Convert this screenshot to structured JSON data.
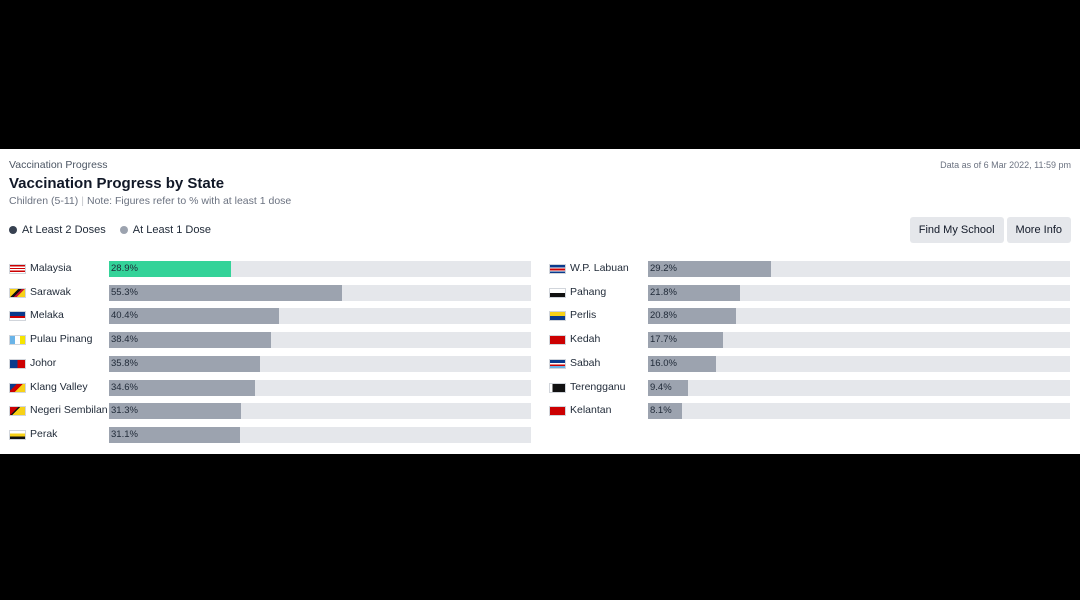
{
  "header": {
    "breadcrumb": "Vaccination Progress",
    "date": "Data as of 6 Mar 2022, 11:59 pm",
    "title": "Vaccination Progress by State",
    "subtitle_group": "Children (5-11)",
    "subtitle_separator": "|",
    "subtitle_note": "Note: Figures refer to % with at least 1 dose"
  },
  "legend": [
    {
      "label": "At Least 2 Doses",
      "color": "#374151"
    },
    {
      "label": "At Least 1 Dose",
      "color": "#9ca3af"
    }
  ],
  "buttons": {
    "find_school": "Find My School",
    "more_info": "More Info"
  },
  "colors": {
    "bar": "#9ca3af",
    "highlight": "#34d399",
    "track": "#e5e7eb"
  },
  "chart_data": {
    "type": "bar",
    "orientation": "horizontal",
    "unit": "%",
    "xlim": [
      0,
      100
    ],
    "grid": false,
    "legend_placement": "top-left",
    "columns": [
      {
        "rows": [
          {
            "state": "Malaysia",
            "value": 28.9,
            "label": "28.9%",
            "highlight": true,
            "flag": "malaysia-flag"
          },
          {
            "state": "Sarawak",
            "value": 55.3,
            "label": "55.3%",
            "flag": "sarawak-flag"
          },
          {
            "state": "Melaka",
            "value": 40.4,
            "label": "40.4%",
            "flag": "melaka-flag"
          },
          {
            "state": "Pulau Pinang",
            "value": 38.4,
            "label": "38.4%",
            "flag": "pulau-pinang-flag"
          },
          {
            "state": "Johor",
            "value": 35.8,
            "label": "35.8%",
            "flag": "johor-flag"
          },
          {
            "state": "Klang Valley",
            "value": 34.6,
            "label": "34.6%",
            "flag": "klang-valley-flag"
          },
          {
            "state": "Negeri Sembilan",
            "value": 31.3,
            "label": "31.3%",
            "flag": "negeri-sembilan-flag"
          },
          {
            "state": "Perak",
            "value": 31.1,
            "label": "31.1%",
            "flag": "perak-flag"
          }
        ]
      },
      {
        "rows": [
          {
            "state": "W.P. Labuan",
            "value": 29.2,
            "label": "29.2%",
            "flag": "labuan-flag"
          },
          {
            "state": "Pahang",
            "value": 21.8,
            "label": "21.8%",
            "flag": "pahang-flag"
          },
          {
            "state": "Perlis",
            "value": 20.8,
            "label": "20.8%",
            "flag": "perlis-flag"
          },
          {
            "state": "Kedah",
            "value": 17.7,
            "label": "17.7%",
            "flag": "kedah-flag"
          },
          {
            "state": "Sabah",
            "value": 16.0,
            "label": "16.0%",
            "flag": "sabah-flag"
          },
          {
            "state": "Terengganu",
            "value": 9.4,
            "label": "9.4%",
            "flag": "terengganu-flag"
          },
          {
            "state": "Kelantan",
            "value": 8.1,
            "label": "8.1%",
            "flag": "kelantan-flag"
          }
        ]
      }
    ]
  }
}
